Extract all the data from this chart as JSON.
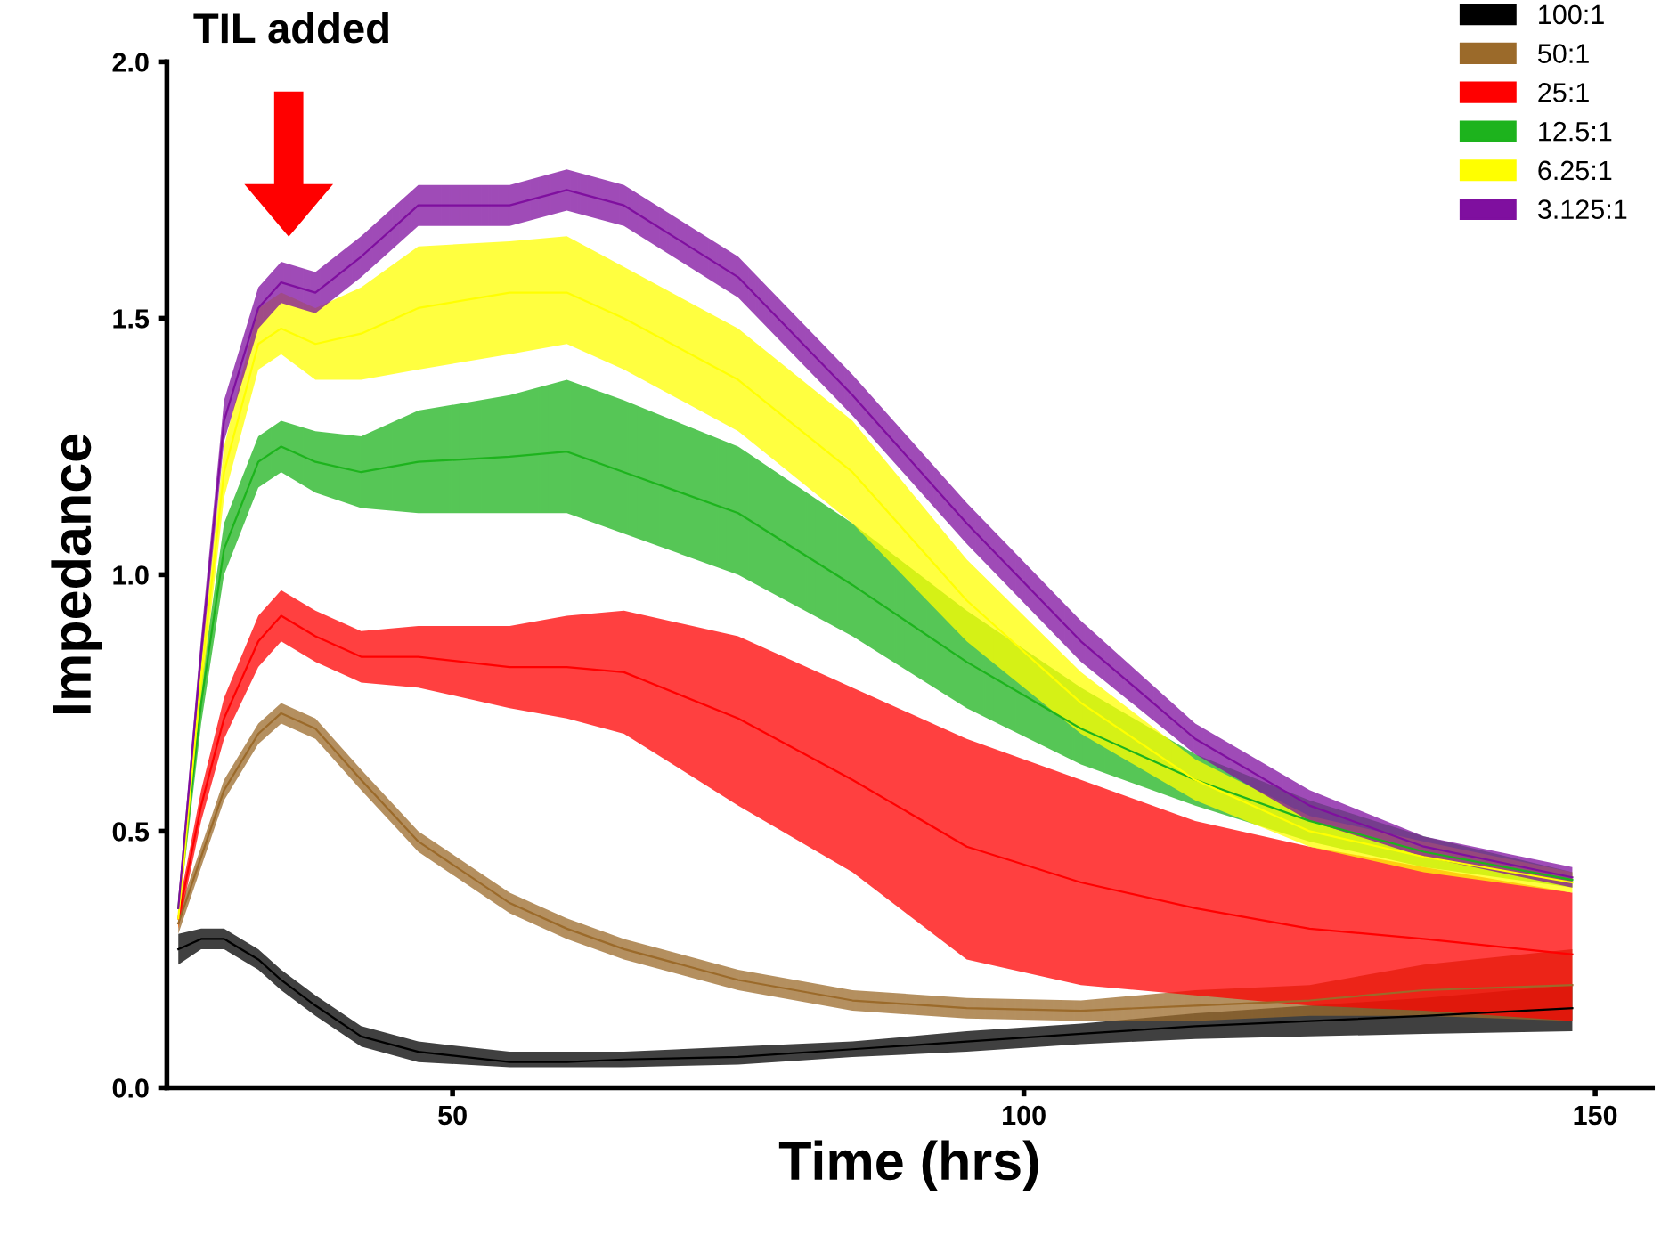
{
  "chart_data": {
    "type": "line",
    "xlabel": "Time (hrs)",
    "ylabel": "Impedance",
    "x": [
      26,
      28,
      30,
      33,
      35,
      38,
      42,
      47,
      55,
      60,
      65,
      75,
      85,
      95,
      105,
      115,
      125,
      135,
      148
    ],
    "series": [
      {
        "name": "100:1",
        "color": "#000000",
        "values": [
          0.27,
          0.29,
          0.29,
          0.25,
          0.21,
          0.16,
          0.1,
          0.07,
          0.05,
          0.05,
          0.055,
          0.06,
          0.075,
          0.09,
          0.105,
          0.12,
          0.13,
          0.14,
          0.155
        ],
        "lower": [
          0.24,
          0.27,
          0.27,
          0.23,
          0.19,
          0.14,
          0.08,
          0.05,
          0.04,
          0.04,
          0.04,
          0.045,
          0.06,
          0.07,
          0.085,
          0.095,
          0.1,
          0.105,
          0.11
        ],
        "upper": [
          0.3,
          0.31,
          0.31,
          0.27,
          0.23,
          0.18,
          0.12,
          0.09,
          0.07,
          0.07,
          0.07,
          0.08,
          0.09,
          0.11,
          0.125,
          0.145,
          0.16,
          0.175,
          0.2
        ]
      },
      {
        "name": "50:1",
        "color": "#9b6a2a",
        "values": [
          0.32,
          0.45,
          0.58,
          0.69,
          0.73,
          0.7,
          0.6,
          0.48,
          0.36,
          0.31,
          0.27,
          0.21,
          0.17,
          0.155,
          0.15,
          0.16,
          0.17,
          0.19,
          0.2
        ],
        "lower": [
          0.3,
          0.43,
          0.56,
          0.67,
          0.71,
          0.68,
          0.58,
          0.46,
          0.34,
          0.29,
          0.25,
          0.19,
          0.15,
          0.135,
          0.13,
          0.13,
          0.14,
          0.14,
          0.13
        ],
        "upper": [
          0.34,
          0.47,
          0.6,
          0.71,
          0.75,
          0.72,
          0.62,
          0.5,
          0.38,
          0.33,
          0.29,
          0.23,
          0.19,
          0.175,
          0.17,
          0.19,
          0.2,
          0.24,
          0.27
        ]
      },
      {
        "name": "25:1",
        "color": "#ff0000",
        "values": [
          0.33,
          0.55,
          0.72,
          0.87,
          0.92,
          0.88,
          0.84,
          0.84,
          0.82,
          0.82,
          0.81,
          0.72,
          0.6,
          0.47,
          0.4,
          0.35,
          0.31,
          0.29,
          0.26
        ],
        "lower": [
          0.31,
          0.52,
          0.68,
          0.82,
          0.87,
          0.83,
          0.79,
          0.78,
          0.74,
          0.72,
          0.69,
          0.55,
          0.42,
          0.25,
          0.2,
          0.18,
          0.16,
          0.15,
          0.13
        ],
        "upper": [
          0.35,
          0.58,
          0.76,
          0.92,
          0.97,
          0.93,
          0.89,
          0.9,
          0.9,
          0.92,
          0.93,
          0.88,
          0.78,
          0.68,
          0.6,
          0.52,
          0.47,
          0.43,
          0.38
        ]
      },
      {
        "name": "12.5:1",
        "color": "#1db31d",
        "values": [
          0.35,
          0.75,
          1.05,
          1.22,
          1.25,
          1.22,
          1.2,
          1.22,
          1.23,
          1.24,
          1.2,
          1.12,
          0.98,
          0.83,
          0.7,
          0.6,
          0.52,
          0.46,
          0.405
        ],
        "lower": [
          0.33,
          0.71,
          1.0,
          1.17,
          1.2,
          1.16,
          1.13,
          1.12,
          1.12,
          1.12,
          1.08,
          1.0,
          0.88,
          0.74,
          0.63,
          0.55,
          0.48,
          0.43,
          0.39
        ],
        "upper": [
          0.37,
          0.79,
          1.1,
          1.27,
          1.3,
          1.28,
          1.27,
          1.32,
          1.35,
          1.38,
          1.34,
          1.25,
          1.1,
          0.93,
          0.78,
          0.65,
          0.56,
          0.49,
          0.42
        ]
      },
      {
        "name": "6.25:1",
        "color": "#ffff00",
        "values": [
          0.33,
          0.8,
          1.2,
          1.45,
          1.48,
          1.45,
          1.47,
          1.52,
          1.55,
          1.55,
          1.5,
          1.38,
          1.2,
          0.95,
          0.75,
          0.6,
          0.5,
          0.45,
          0.4
        ],
        "lower": [
          0.31,
          0.76,
          1.15,
          1.4,
          1.43,
          1.38,
          1.38,
          1.4,
          1.43,
          1.45,
          1.4,
          1.28,
          1.1,
          0.87,
          0.69,
          0.56,
          0.47,
          0.42,
          0.38
        ],
        "upper": [
          0.35,
          0.84,
          1.25,
          1.52,
          1.55,
          1.52,
          1.56,
          1.64,
          1.65,
          1.66,
          1.6,
          1.48,
          1.3,
          1.03,
          0.81,
          0.64,
          0.53,
          0.48,
          0.42
        ]
      },
      {
        "name": "3.125:1",
        "color": "#7f0f9f",
        "values": [
          0.35,
          0.85,
          1.3,
          1.52,
          1.57,
          1.55,
          1.62,
          1.72,
          1.72,
          1.75,
          1.72,
          1.58,
          1.35,
          1.1,
          0.87,
          0.68,
          0.55,
          0.47,
          0.41
        ],
        "lower": [
          0.33,
          0.82,
          1.26,
          1.48,
          1.53,
          1.51,
          1.58,
          1.68,
          1.68,
          1.71,
          1.68,
          1.54,
          1.31,
          1.06,
          0.83,
          0.65,
          0.52,
          0.45,
          0.39
        ],
        "upper": [
          0.37,
          0.88,
          1.34,
          1.56,
          1.61,
          1.59,
          1.66,
          1.76,
          1.76,
          1.79,
          1.76,
          1.62,
          1.39,
          1.14,
          0.91,
          0.71,
          0.58,
          0.49,
          0.43
        ]
      }
    ],
    "xlim": [
      25,
      155
    ],
    "ylim": [
      0,
      2
    ],
    "xticks": [
      50,
      100,
      150
    ],
    "yticks": [
      {
        "value": 0,
        "label": "0.0"
      },
      {
        "value": 0.5,
        "label": "0.5"
      },
      {
        "value": 1,
        "label": "1.0"
      },
      {
        "value": 1.5,
        "label": "1.5"
      },
      {
        "value": 2,
        "label": "2.0"
      }
    ],
    "annotations": [
      "TIL added"
    ],
    "legend": "top right",
    "grid": false,
    "marker": "none",
    "line_style": "solid"
  }
}
